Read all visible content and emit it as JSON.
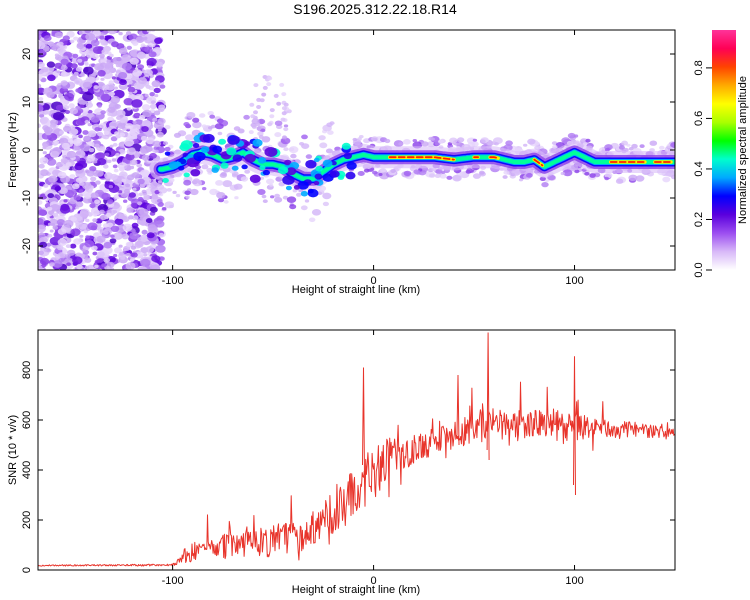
{
  "title": "S196.2025.312.22.18.R14",
  "chart_data": [
    {
      "type": "heatmap",
      "xlabel": "Height of straight line (km)",
      "ylabel": "Frequency (Hz)",
      "xlim": [
        -167,
        150
      ],
      "ylim": [
        -25,
        25
      ],
      "xticks": [
        -100,
        0,
        100
      ],
      "xtick_labels": [
        "-100",
        "0",
        "100"
      ],
      "yticks": [
        -20,
        -10,
        0,
        10,
        20
      ],
      "ytick_labels": [
        "-20",
        "-10",
        "0",
        "10",
        "20"
      ],
      "ridge": {
        "x": [
          -105,
          -100,
          -95,
          -90,
          -85,
          -80,
          -75,
          -70,
          -65,
          -60,
          -55,
          -50,
          -45,
          -40,
          -35,
          -30,
          -25,
          -20,
          -15,
          -10,
          -5,
          0,
          10,
          20,
          30,
          40,
          50,
          60,
          70,
          75,
          80,
          85,
          90,
          95,
          100,
          105,
          110,
          120,
          130,
          140,
          150
        ],
        "freq": [
          -4,
          -3.5,
          -2.5,
          -1,
          -0.5,
          -1,
          -2,
          -1.5,
          -0.5,
          -2,
          -3,
          -3,
          -3.5,
          -5,
          -6,
          -6,
          -4.5,
          -3,
          -2,
          -1.5,
          -1,
          -1.5,
          -1.5,
          -1.5,
          -1.5,
          -2,
          -1.5,
          -1.5,
          -2.5,
          -2.5,
          -2,
          -3.5,
          -2.5,
          -1.5,
          -0.5,
          -1.5,
          -2.5,
          -2.5,
          -2.5,
          -2.5,
          -2.5
        ]
      },
      "colorbar": {
        "label": "Normalized spectral amplitude",
        "range": [
          0,
          0.95
        ],
        "ticks": [
          0.0,
          0.2,
          0.4,
          0.6,
          0.8
        ],
        "tick_labels": [
          "0.0",
          "0.2",
          "0.4",
          "0.6",
          "0.8"
        ],
        "colors": [
          "#ffffff",
          "#d8b8f8",
          "#9c4ef0",
          "#5a00dd",
          "#0000ff",
          "#00aaff",
          "#00ffcc",
          "#00ff00",
          "#aaff00",
          "#ffff00",
          "#ffaa00",
          "#ff4400",
          "#ff0055",
          "#ff3399"
        ]
      }
    },
    {
      "type": "line",
      "xlabel": "Height of straight line (km)",
      "ylabel": "SNR (10 * v/v)",
      "xlim": [
        -167,
        150
      ],
      "ylim": [
        0,
        960
      ],
      "xticks": [
        -100,
        0,
        100
      ],
      "xtick_labels": [
        "-100",
        "0",
        "100"
      ],
      "yticks": [
        0,
        200,
        400,
        600,
        800
      ],
      "ytick_labels": [
        "0",
        "200",
        "400",
        "600",
        "800"
      ],
      "color": "#e8342b",
      "envelope": {
        "x": [
          -167,
          -100,
          -95,
          -90,
          -80,
          -70,
          -60,
          -50,
          -40,
          -30,
          -20,
          -10,
          -5,
          0,
          5,
          10,
          20,
          30,
          40,
          50,
          55,
          60,
          70,
          80,
          90,
          100,
          110,
          120,
          130,
          140,
          150
        ],
        "base": [
          18,
          20,
          40,
          60,
          70,
          80,
          85,
          95,
          110,
          150,
          200,
          270,
          320,
          360,
          400,
          430,
          460,
          500,
          530,
          550,
          560,
          580,
          560,
          570,
          560,
          550,
          560,
          550,
          555,
          545,
          550
        ],
        "amp": [
          5,
          8,
          60,
          90,
          100,
          110,
          120,
          130,
          140,
          150,
          170,
          200,
          210,
          200,
          190,
          170,
          120,
          110,
          110,
          120,
          150,
          100,
          100,
          110,
          130,
          110,
          80,
          70,
          60,
          50,
          40
        ]
      }
    }
  ]
}
